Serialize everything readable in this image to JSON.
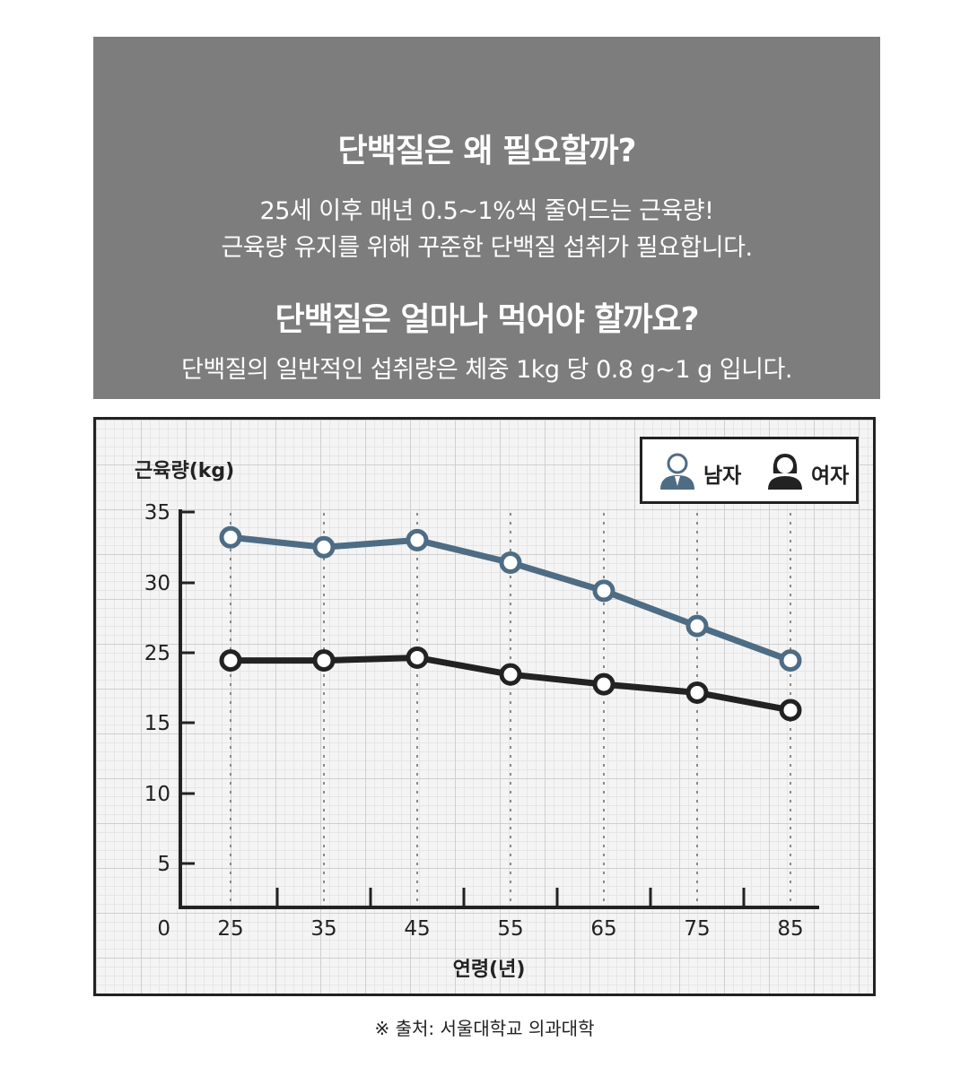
{
  "header": {
    "title1": "단백질은 왜 필요할까?",
    "line1": "25세 이후 매년 0.5~1%씩 줄어드는 근육량!",
    "line2": "근육량 유지를 위해 꾸준한 단백질 섭취가 필요합니다.",
    "title2": "단백질은 얼마나 먹어야 할까요?",
    "line3": "단백질의 일반적인 섭취량은 체중 1kg 당 0.8 g~1 g 입니다."
  },
  "legend": {
    "male": "남자",
    "female": "여자"
  },
  "source": "※ 출처: 서울대학교 의과대학",
  "chart_data": {
    "type": "line",
    "ylabel": "근육량(kg)",
    "xlabel": "연령(년)",
    "y_ticks": [
      0,
      5,
      10,
      15,
      25,
      30,
      35
    ],
    "x": [
      25,
      35,
      45,
      55,
      65,
      75,
      85
    ],
    "series": [
      {
        "name": "남자",
        "color": "#4e6c84",
        "values": [
          33.2,
          32.5,
          33.0,
          31.4,
          29.4,
          26.9,
          23.9
        ]
      },
      {
        "name": "여자",
        "color": "#222222",
        "values": [
          23.9,
          23.9,
          24.3,
          21.9,
          20.5,
          19.3,
          16.8
        ]
      }
    ],
    "grid": true,
    "legend_position": "top-right"
  }
}
